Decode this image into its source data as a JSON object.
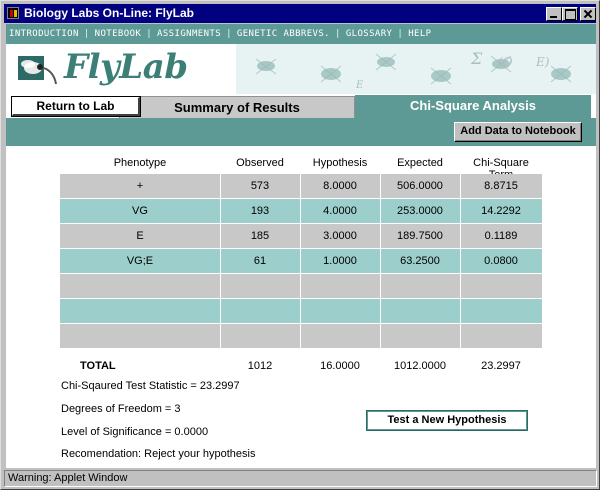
{
  "window": {
    "title": "Biology Labs On-Line: FlyLab"
  },
  "nav": {
    "items": [
      "INTRODUCTION",
      "NOTEBOOK",
      "ASSIGNMENTS",
      "GENETIC ABBREVS.",
      "GLOSSARY",
      "HELP"
    ],
    "separator": "|"
  },
  "banner": {
    "logo_text": "FlyLab"
  },
  "tabs": {
    "return_label": "Return to Lab",
    "summary_label": "Summary of Results",
    "chi_label": "Chi-Square Analysis"
  },
  "toolbar": {
    "add_label": "Add Data to Notebook"
  },
  "table": {
    "headers": [
      "Phenotype",
      "Observed",
      "Hypothesis",
      "Expected",
      "Chi-Square Term"
    ],
    "rows": [
      [
        "+",
        "573",
        "8.0000",
        "506.0000",
        "8.8715"
      ],
      [
        "VG",
        "193",
        "4.0000",
        "253.0000",
        "14.2292"
      ],
      [
        "E",
        "185",
        "3.0000",
        "189.7500",
        "0.1189"
      ],
      [
        "VG;E",
        "61",
        "1.0000",
        "63.2500",
        "0.0800"
      ],
      [
        "",
        "",
        "",
        "",
        ""
      ],
      [
        "",
        "",
        "",
        "",
        ""
      ],
      [
        "",
        "",
        "",
        "",
        ""
      ]
    ],
    "totals": {
      "label": "TOTAL",
      "observed": "1012",
      "hypothesis": "16.0000",
      "expected": "1012.0000",
      "chi": "23.2997"
    }
  },
  "stats": {
    "test_statistic": "Chi-Sqaured Test Statistic = 23.2997",
    "degrees_freedom": "Degrees of Freedom = 3",
    "significance": "Level of Significance = 0.0000",
    "recommendation": "Recomendation: Reject your hypothesis"
  },
  "buttons": {
    "test_new": "Test a New Hypothesis"
  },
  "status": {
    "warning": "Warning: Applet Window"
  },
  "colors": {
    "teal": "#5e9a95",
    "teal_light": "#9ccfcb",
    "gray_row": "#c8c8c8",
    "title_blue": "#000080",
    "logo": "#3b7f77"
  }
}
